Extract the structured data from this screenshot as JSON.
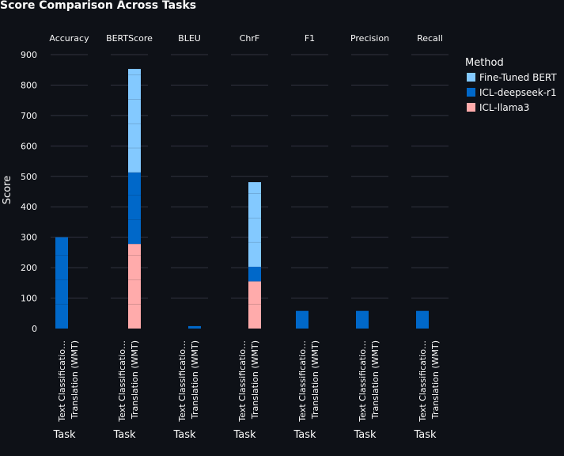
{
  "chart_data": {
    "type": "bar",
    "stacked": true,
    "title": "Score Comparison Across Tasks",
    "xlabel": "Task",
    "ylabel": "Score",
    "ylim": [
      0,
      900
    ],
    "yticks": [
      0,
      100,
      200,
      300,
      400,
      500,
      600,
      700,
      800,
      900
    ],
    "grid": true,
    "legend_title": "Method",
    "legend_position": "right",
    "facets": [
      "Accuracy",
      "BERTScore",
      "BLEU",
      "ChrF",
      "F1",
      "Precision",
      "Recall"
    ],
    "categories": [
      "Text Classificatio…",
      "Translation (WMT)"
    ],
    "series": [
      {
        "name": "Fine-Tuned BERT",
        "color": "#83c9ff",
        "values": [
          [
            0,
            0
          ],
          [
            0,
            340
          ],
          [
            0,
            0
          ],
          [
            0,
            278
          ],
          [
            0,
            0
          ],
          [
            0,
            0
          ],
          [
            0,
            0
          ]
        ]
      },
      {
        "name": "ICL-deepseek-r1",
        "color": "#0068c9",
        "values": [
          [
            300,
            0
          ],
          [
            0,
            235
          ],
          [
            0,
            8
          ],
          [
            0,
            48
          ],
          [
            58,
            0
          ],
          [
            58,
            0
          ],
          [
            58,
            0
          ]
        ]
      },
      {
        "name": "ICL-llama3",
        "color": "#ffabab",
        "values": [
          [
            0,
            0
          ],
          [
            0,
            278
          ],
          [
            0,
            0
          ],
          [
            0,
            155
          ],
          [
            0,
            0
          ],
          [
            0,
            0
          ],
          [
            0,
            0
          ]
        ]
      }
    ]
  }
}
